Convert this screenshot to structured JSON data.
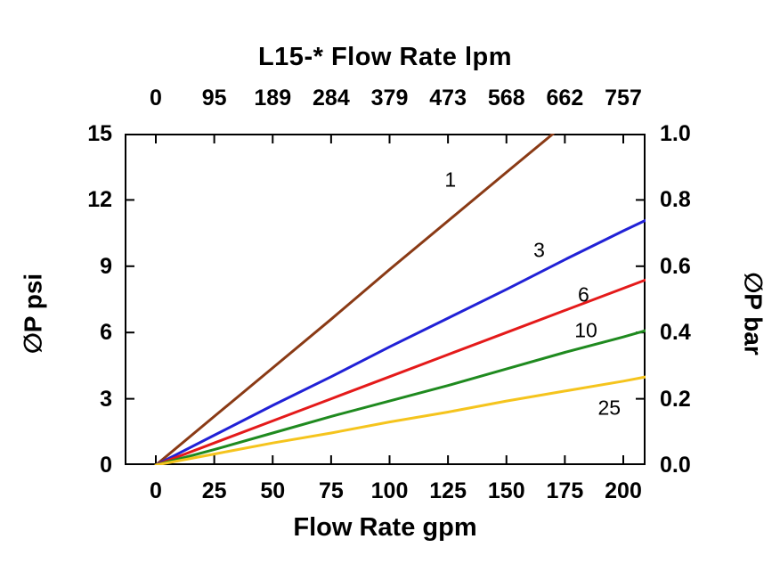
{
  "chart": {
    "title": "L15-* Flow Rate lpm",
    "xlabel_bottom": "Flow Rate gpm",
    "ylabel_left": "∅P psi",
    "ylabel_right": "∅P bar"
  },
  "chart_data": {
    "type": "line",
    "title": "L15-* Flow Rate lpm",
    "grid": false,
    "legend_position": "inline-labels",
    "x_bottom": {
      "label": "Flow Rate gpm",
      "ticks": [
        0,
        25,
        50,
        75,
        100,
        125,
        150,
        175,
        200
      ],
      "range": [
        0,
        200
      ]
    },
    "x_top": {
      "label": "L15-* Flow Rate lpm",
      "ticks": [
        0,
        95,
        189,
        284,
        379,
        473,
        568,
        662,
        757
      ],
      "range": [
        0,
        757
      ]
    },
    "y_left": {
      "label": "∅P psi",
      "ticks": [
        0,
        3,
        6,
        9,
        12,
        15
      ],
      "range": [
        0,
        15
      ]
    },
    "y_right": {
      "label": "∅P bar",
      "ticks": [
        "0.0",
        "0.2",
        "0.4",
        "0.6",
        "0.8",
        "1.0"
      ],
      "range": [
        0,
        1.0
      ]
    },
    "series": [
      {
        "name": "1",
        "color": "#8a3a15",
        "points": [
          [
            0,
            0
          ],
          [
            25,
            2.2
          ],
          [
            50,
            4.4
          ],
          [
            75,
            6.6
          ],
          [
            100,
            8.85
          ],
          [
            125,
            11.05
          ],
          [
            150,
            13.25
          ],
          [
            170,
            15
          ]
        ],
        "label_pos": [
          126,
          12.9
        ]
      },
      {
        "name": "3",
        "color": "#2121d6",
        "points": [
          [
            0,
            0
          ],
          [
            25,
            1.35
          ],
          [
            50,
            2.7
          ],
          [
            75,
            4.0
          ],
          [
            100,
            5.35
          ],
          [
            125,
            6.65
          ],
          [
            150,
            7.95
          ],
          [
            175,
            9.3
          ],
          [
            200,
            10.6
          ],
          [
            210,
            11.1
          ]
        ],
        "label_pos": [
          164,
          9.7
        ]
      },
      {
        "name": "6",
        "color": "#e41a1a",
        "points": [
          [
            0,
            0
          ],
          [
            25,
            1.0
          ],
          [
            50,
            2.0
          ],
          [
            75,
            3.0
          ],
          [
            100,
            4.0
          ],
          [
            125,
            5.0
          ],
          [
            150,
            6.0
          ],
          [
            175,
            7.0
          ],
          [
            200,
            8.0
          ],
          [
            210,
            8.4
          ]
        ],
        "label_pos": [
          183,
          7.7
        ]
      },
      {
        "name": "10",
        "color": "#1f8a1f",
        "points": [
          [
            0,
            0
          ],
          [
            25,
            0.7
          ],
          [
            50,
            1.45
          ],
          [
            75,
            2.2
          ],
          [
            100,
            2.9
          ],
          [
            125,
            3.6
          ],
          [
            150,
            4.35
          ],
          [
            175,
            5.1
          ],
          [
            200,
            5.8
          ],
          [
            210,
            6.1
          ]
        ],
        "label_pos": [
          184,
          6.1
        ]
      },
      {
        "name": "25",
        "color": "#f5c41d",
        "points": [
          [
            0,
            0
          ],
          [
            25,
            0.5
          ],
          [
            50,
            1.0
          ],
          [
            75,
            1.45
          ],
          [
            100,
            1.95
          ],
          [
            125,
            2.4
          ],
          [
            150,
            2.9
          ],
          [
            175,
            3.35
          ],
          [
            200,
            3.8
          ],
          [
            210,
            4.0
          ]
        ],
        "label_pos": [
          194,
          2.6
        ]
      }
    ]
  }
}
